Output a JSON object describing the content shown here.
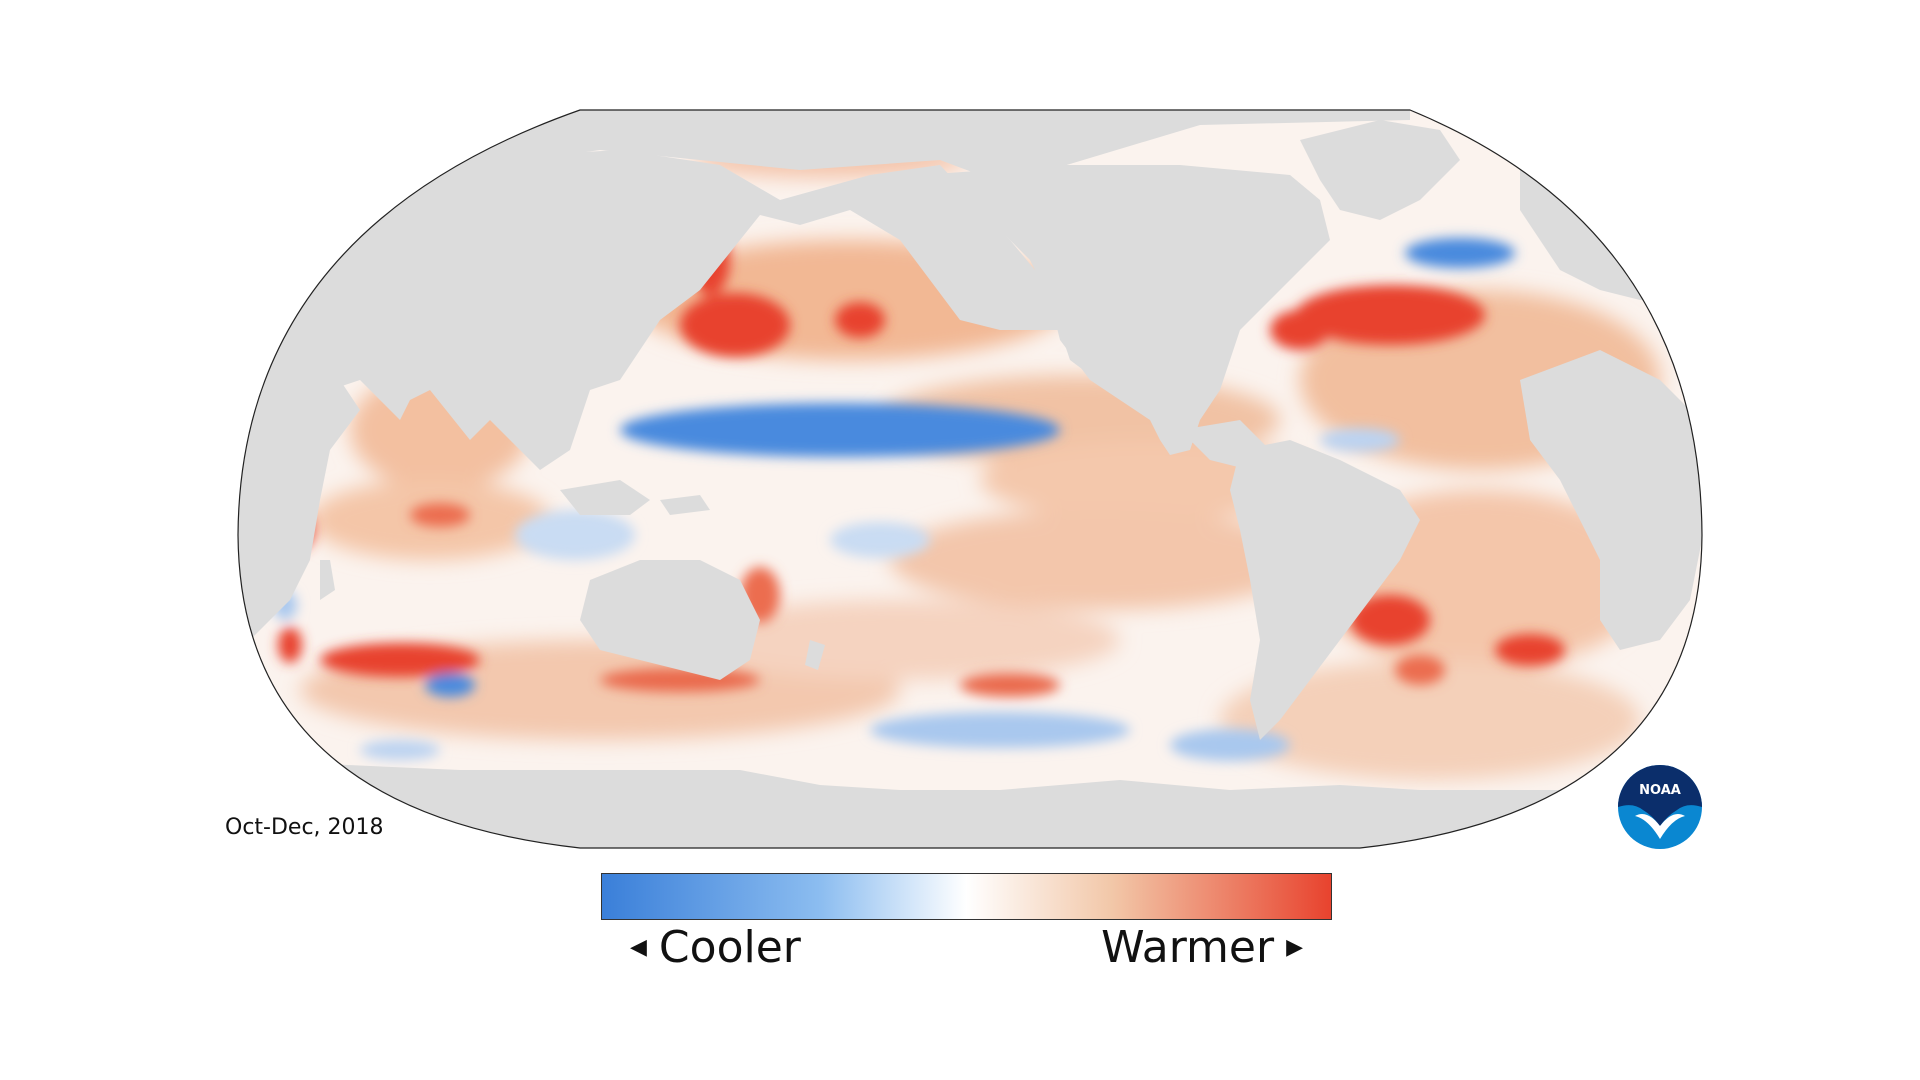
{
  "map": {
    "projection": "robinson",
    "subject": "sea surface temperature anomaly",
    "land_color": "#dcdcdc",
    "ocean_background": "#fbf3ee"
  },
  "period_label": "Oct-Dec, 2018",
  "legend": {
    "cool_label": "Cooler",
    "warm_label": "Warmer",
    "cool_color": "#3a7fd9",
    "neutral_color": "#ffffff",
    "warm_color": "#e8432e"
  },
  "logo": {
    "text": "NOAA",
    "icon": "noaa-logo-icon"
  }
}
